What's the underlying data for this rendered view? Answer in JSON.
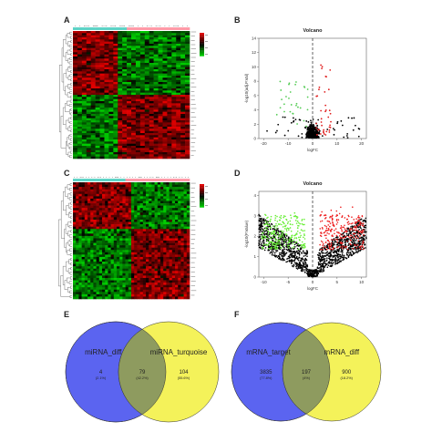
{
  "panels": {
    "a": {
      "letter": "A"
    },
    "b": {
      "letter": "B"
    },
    "c": {
      "letter": "C"
    },
    "d": {
      "letter": "D"
    },
    "e": {
      "letter": "E"
    },
    "f": {
      "letter": "F"
    }
  },
  "chart_data": [
    {
      "panel": "A",
      "type": "heatmap",
      "rows": 60,
      "cols": 26,
      "palette": [
        "#00cc00",
        "#000000",
        "#e00000"
      ],
      "top_bar_colors": [
        "#5fd3c6",
        "#ff9aa8"
      ],
      "color_key": [
        "#e00000",
        "#000000",
        "#00cc00"
      ],
      "clusters": {
        "left_cols": 10,
        "top_rows": 30
      }
    },
    {
      "panel": "B",
      "type": "scatter",
      "title": "Volcano",
      "xlabel": "logFC",
      "ylabel": "-log10(adj.P.Val)",
      "xlim": [
        -22,
        22
      ],
      "ylim": [
        0,
        14
      ],
      "xticks": [
        -20,
        -10,
        0,
        10,
        20
      ],
      "yticks": [
        0,
        2,
        4,
        6,
        8,
        10,
        12,
        14
      ],
      "series": [
        {
          "color": "#000000",
          "n": 420
        },
        {
          "color": "#55cc55",
          "n": 30
        },
        {
          "color": "#e02020",
          "n": 40
        }
      ],
      "dashed_x": 0
    },
    {
      "panel": "C",
      "type": "heatmap",
      "rows": 50,
      "cols": 40,
      "palette": [
        "#00cc00",
        "#000000",
        "#e00000"
      ],
      "top_bar_colors": [
        "#5fd3c6",
        "#ff9aa8"
      ],
      "color_key": [
        "#e00000",
        "#000000",
        "#00cc00"
      ],
      "clusters": {
        "left_cols": 20,
        "top_rows": 20
      }
    },
    {
      "panel": "D",
      "type": "scatter",
      "title": "Volcano",
      "xlabel": "logFC",
      "ylabel": "-log10(P.Value)",
      "xlim": [
        -11,
        11
      ],
      "ylim": [
        0,
        4.2
      ],
      "xticks": [
        -10,
        -5,
        0,
        5,
        10
      ],
      "yticks": [
        0,
        1,
        2,
        3,
        4
      ],
      "series": [
        {
          "color": "#000000",
          "n": 1500
        },
        {
          "color": "#66ee33",
          "n": 260
        },
        {
          "color": "#ee2020",
          "n": 260
        }
      ],
      "dashed_x": 0
    },
    {
      "panel": "E",
      "type": "venn",
      "sets": [
        {
          "label": "miRNA_diff",
          "color": "#5b64f0"
        },
        {
          "label": "miRNA_turquoise",
          "color": "#f4f25a"
        }
      ],
      "regions": [
        {
          "count": "4",
          "pct": "(2.1%)"
        },
        {
          "count": "79",
          "pct": "(42.2%)"
        },
        {
          "count": "104",
          "pct": "(55.6%)"
        }
      ]
    },
    {
      "panel": "F",
      "type": "venn",
      "sets": [
        {
          "label": "mRNA_target",
          "color": "#5b64f0"
        },
        {
          "label": "mRNA_diff",
          "color": "#f4f25a"
        }
      ],
      "regions": [
        {
          "count": "3835",
          "pct": "(77.8%)"
        },
        {
          "count": "197",
          "pct": "(4%)"
        },
        {
          "count": "900",
          "pct": "(18.2%)"
        }
      ]
    }
  ]
}
